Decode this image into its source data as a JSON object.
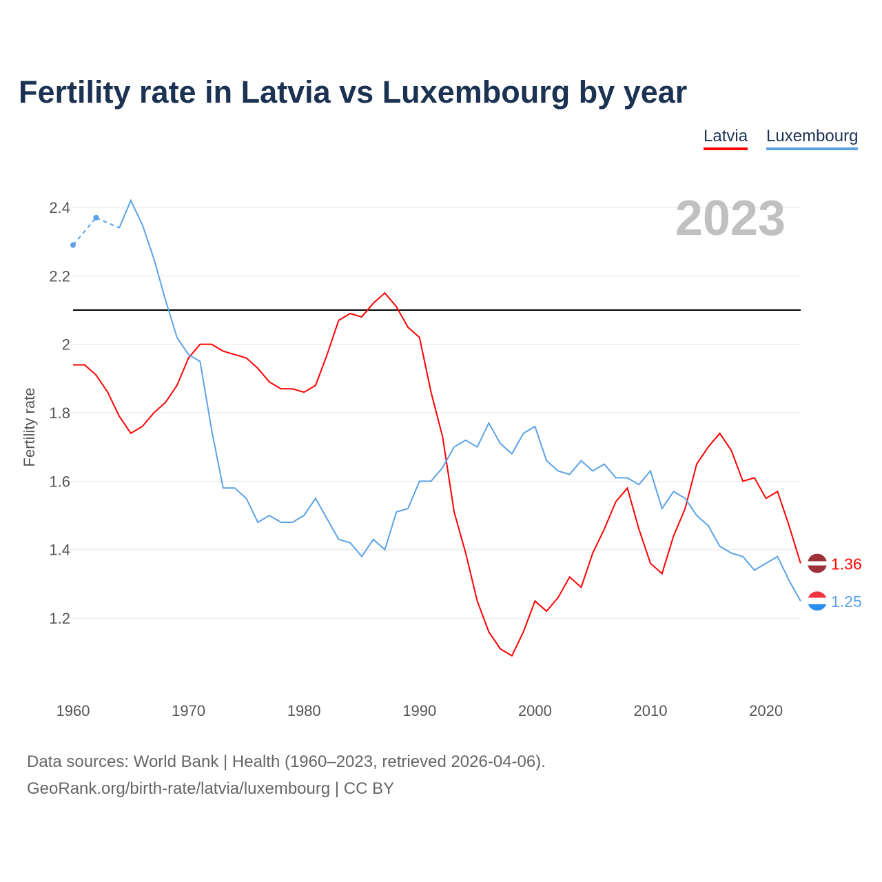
{
  "chart_data": {
    "type": "line",
    "title": "Fertility rate in Latvia vs Luxembourg by year",
    "xlabel": "",
    "ylabel": "Fertility rate",
    "xlim": [
      1960,
      2023
    ],
    "ylim": [
      1.0,
      2.45
    ],
    "yticks": [
      1.2,
      1.4,
      1.6,
      1.8,
      2.0,
      2.2,
      2.4
    ],
    "ytick_labels": [
      "1.2",
      "1.4",
      "1.6",
      "1.8",
      "2",
      "2.2",
      "2.4"
    ],
    "xticks": [
      1960,
      1970,
      1980,
      1990,
      2000,
      2010,
      2020
    ],
    "xtick_labels": [
      "1960",
      "1970",
      "1980",
      "1990",
      "2000",
      "2010",
      "2020"
    ],
    "grid": true,
    "legend_position": "top-right",
    "year_label": "2023",
    "reference_line": 2.1,
    "x": [
      1960,
      1961,
      1962,
      1963,
      1964,
      1965,
      1966,
      1967,
      1968,
      1969,
      1970,
      1971,
      1972,
      1973,
      1974,
      1975,
      1976,
      1977,
      1978,
      1979,
      1980,
      1981,
      1982,
      1983,
      1984,
      1985,
      1986,
      1987,
      1988,
      1989,
      1990,
      1991,
      1992,
      1993,
      1994,
      1995,
      1996,
      1997,
      1998,
      1999,
      2000,
      2001,
      2002,
      2003,
      2004,
      2005,
      2006,
      2007,
      2008,
      2009,
      2010,
      2011,
      2012,
      2013,
      2014,
      2015,
      2016,
      2017,
      2018,
      2019,
      2020,
      2021,
      2022,
      2023
    ],
    "series": [
      {
        "name": "Latvia",
        "color": "#ff0000",
        "end_label": "1.36",
        "values": [
          1.94,
          1.94,
          1.91,
          1.86,
          1.79,
          1.74,
          1.76,
          1.8,
          1.83,
          1.88,
          1.96,
          2.0,
          2.0,
          1.98,
          1.97,
          1.96,
          1.93,
          1.89,
          1.87,
          1.87,
          1.86,
          1.88,
          1.97,
          2.07,
          2.09,
          2.08,
          2.12,
          2.15,
          2.11,
          2.05,
          2.02,
          1.86,
          1.73,
          1.51,
          1.39,
          1.25,
          1.16,
          1.11,
          1.09,
          1.16,
          1.25,
          1.22,
          1.26,
          1.32,
          1.29,
          1.39,
          1.46,
          1.54,
          1.58,
          1.46,
          1.36,
          1.33,
          1.44,
          1.52,
          1.65,
          1.7,
          1.74,
          1.69,
          1.6,
          1.61,
          1.55,
          1.57,
          1.47,
          1.36
        ]
      },
      {
        "name": "Luxembourg",
        "color": "#5aa2e6",
        "end_label": "1.25",
        "values": [
          2.29,
          null,
          2.37,
          null,
          2.34,
          2.42,
          2.35,
          2.25,
          2.13,
          2.02,
          1.97,
          1.95,
          1.75,
          1.58,
          1.58,
          1.55,
          1.48,
          1.5,
          1.48,
          1.48,
          1.5,
          1.55,
          1.49,
          1.43,
          1.42,
          1.38,
          1.43,
          1.4,
          1.51,
          1.52,
          1.6,
          1.6,
          1.64,
          1.7,
          1.72,
          1.7,
          1.77,
          1.71,
          1.68,
          1.74,
          1.76,
          1.66,
          1.63,
          1.62,
          1.66,
          1.63,
          1.65,
          1.61,
          1.61,
          1.59,
          1.63,
          1.52,
          1.57,
          1.55,
          1.5,
          1.47,
          1.41,
          1.39,
          1.38,
          1.34,
          1.36,
          1.38,
          1.31,
          1.25
        ]
      }
    ]
  },
  "legend": {
    "latvia": "Latvia",
    "luxembourg": "Luxembourg"
  },
  "footer": {
    "line1": "Data sources: World Bank | Health (1960–2023, retrieved 2026-04-06).",
    "line2": "GeoRank.org/birth-rate/latvia/luxembourg | CC BY"
  }
}
